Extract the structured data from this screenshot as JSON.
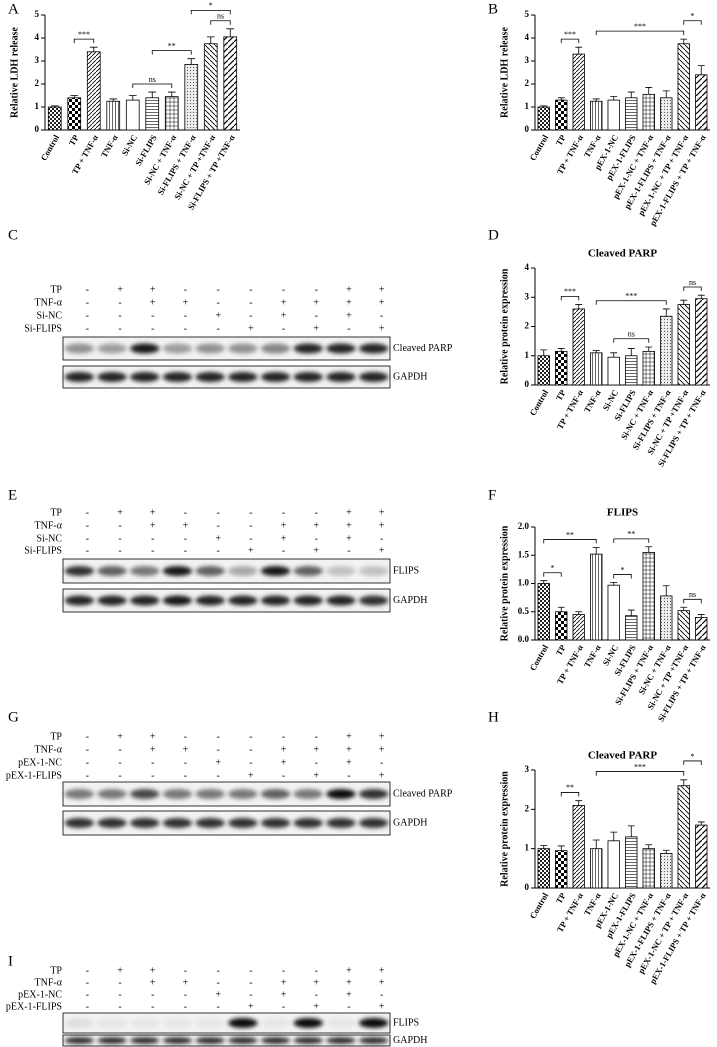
{
  "chart_data": [
    {
      "type": "bar",
      "label": "A",
      "ylabel": "Relative LDH release",
      "categories": [
        "Control",
        "TP",
        "TP + TNF-α",
        "TNF-α",
        "Si-NC",
        "Si-FLIPS",
        "Si-NC + TNF-α",
        "Si-FLIPS + TNF-α",
        "Si-NC + TP +TNF-α",
        "Si-FLIPS + TP +TNF-α"
      ],
      "values": [
        1.0,
        1.4,
        3.4,
        1.25,
        1.3,
        1.4,
        1.45,
        2.85,
        3.75,
        4.05
      ],
      "errors": [
        0.05,
        0.1,
        0.2,
        0.1,
        0.2,
        0.25,
        0.2,
        0.25,
        0.3,
        0.35
      ],
      "patterns": [
        "dense",
        "check",
        "diag",
        "vlines",
        "none",
        "hlines",
        "grid",
        "dots",
        "diag2",
        "diag3"
      ],
      "ylim": [
        0,
        5
      ],
      "yticks": [
        0,
        1,
        2,
        3,
        4,
        5
      ],
      "brackets": [
        {
          "from": 1,
          "to": 2,
          "label": "***"
        },
        {
          "from": 4,
          "to": 6,
          "label": "ns"
        },
        {
          "from": 5,
          "to": 7,
          "label": "**"
        },
        {
          "from": 8,
          "to": 9,
          "label": "ns"
        },
        {
          "from": 7,
          "to": 9,
          "label": "*"
        }
      ]
    },
    {
      "type": "bar",
      "label": "B",
      "ylabel": "Relative LDH release",
      "categories": [
        "Control",
        "TP",
        "TP + TNF-α",
        "TNF-α",
        "pEX-1-NC",
        "pEX-1-FLIPS",
        "pEX-1-NC + TNF-α",
        "pEX-1-FLIPS + TNF-α",
        "pEX-1-NC + TP + TNF-α",
        "pEX-1-FLIPS + TP + TNF-α"
      ],
      "values": [
        1.0,
        1.3,
        3.3,
        1.25,
        1.3,
        1.4,
        1.55,
        1.4,
        3.75,
        2.4
      ],
      "errors": [
        0.05,
        0.1,
        0.3,
        0.1,
        0.15,
        0.25,
        0.3,
        0.3,
        0.2,
        0.4
      ],
      "patterns": [
        "dense",
        "check",
        "diag",
        "vlines",
        "none",
        "hlines",
        "grid",
        "dots",
        "diag2",
        "diag3"
      ],
      "ylim": [
        0,
        5
      ],
      "yticks": [
        0,
        1,
        2,
        3,
        4,
        5
      ],
      "brackets": [
        {
          "from": 1,
          "to": 2,
          "label": "***"
        },
        {
          "from": 3,
          "to": 8,
          "label": "***"
        },
        {
          "from": 8,
          "to": 9,
          "label": "*"
        }
      ]
    },
    {
      "type": "bar",
      "label": "D",
      "title": "Cleaved PARP",
      "ylabel": "Relative protein expression",
      "categories": [
        "Control",
        "TP",
        "TP + TNF-α",
        "TNF-α",
        "Si-NC",
        "Si-FLIPS",
        "Si-NC + TNF-α",
        "Si-FLIPS + TNF-α",
        "Si-NC + TP +TNF-α",
        "Si-FLIPS + TP + TNF-α"
      ],
      "values": [
        1.0,
        1.15,
        2.6,
        1.1,
        0.95,
        1.0,
        1.15,
        2.35,
        2.75,
        2.95
      ],
      "errors": [
        0.2,
        0.1,
        0.15,
        0.08,
        0.15,
        0.25,
        0.15,
        0.25,
        0.15,
        0.12
      ],
      "patterns": [
        "dense",
        "check",
        "diag",
        "vlines",
        "none",
        "hlines",
        "grid",
        "dots",
        "diag2",
        "diag3"
      ],
      "ylim": [
        0,
        4
      ],
      "yticks": [
        0,
        1,
        2,
        3,
        4
      ],
      "brackets": [
        {
          "from": 1,
          "to": 2,
          "label": "***"
        },
        {
          "from": 4,
          "to": 6,
          "label": "ns"
        },
        {
          "from": 3,
          "to": 7,
          "label": "***"
        },
        {
          "from": 8,
          "to": 9,
          "label": "ns"
        }
      ]
    },
    {
      "type": "bar",
      "label": "F",
      "title": "FLIPS",
      "ylabel": "Relative protein expression",
      "categories": [
        "Control",
        "TP",
        "TP + TNF-α",
        "TNF-α",
        "Si-NC",
        "Si-FLIPS",
        "Si-FLIPS + TNF-α",
        "Si-NC + TNF-α",
        "Si-NC + TP +TNF-α",
        "Si-FLIPS + TP + TNF-α"
      ],
      "values": [
        1.0,
        0.5,
        0.45,
        1.52,
        0.97,
        0.43,
        1.55,
        0.78,
        0.52,
        0.4
      ],
      "errors": [
        0.05,
        0.08,
        0.05,
        0.12,
        0.05,
        0.1,
        0.1,
        0.18,
        0.06,
        0.05
      ],
      "patterns": [
        "dense",
        "check",
        "diag",
        "vlines",
        "none",
        "hlines",
        "grid",
        "dots",
        "diag2",
        "diag3"
      ],
      "ylim": [
        0,
        2
      ],
      "yticks": [
        {
          "value": 0,
          "label": "0.0"
        },
        {
          "value": 0.5,
          "label": "0.5"
        },
        {
          "value": 1,
          "label": "1.0"
        },
        {
          "value": 1.5,
          "label": "1.5"
        },
        {
          "value": 2,
          "label": "2.0"
        }
      ],
      "brackets": [
        {
          "from": 0,
          "to": 1,
          "label": "*"
        },
        {
          "from": 4,
          "to": 5,
          "label": "*"
        },
        {
          "from": 0,
          "to": 3,
          "label": "**"
        },
        {
          "from": 4,
          "to": 6,
          "label": "**"
        },
        {
          "from": 8,
          "to": 9,
          "label": "ns"
        }
      ]
    },
    {
      "type": "bar",
      "label": "H",
      "title": "Cleaved PARP",
      "ylabel": "Relative protein expression",
      "categories": [
        "Control",
        "TP",
        "TP + TNF-α",
        "TNF-α",
        "pEX-1-NC",
        "pEX-1-FLIPS",
        "pEX-1-NC + TNF-α",
        "pEX-1-FLIPS + TNF-α",
        "pEX-1-NC + TP + TNF-α",
        "pEX-1-FLIPS + TP + TNF-α"
      ],
      "values": [
        1.0,
        0.95,
        2.1,
        1.0,
        1.2,
        1.3,
        1.0,
        0.88,
        2.6,
        1.6
      ],
      "errors": [
        0.08,
        0.12,
        0.12,
        0.22,
        0.22,
        0.28,
        0.1,
        0.08,
        0.15,
        0.08
      ],
      "patterns": [
        "dense",
        "check",
        "diag",
        "vlines",
        "none",
        "hlines",
        "grid",
        "dots",
        "diag2",
        "diag3"
      ],
      "ylim": [
        0,
        3
      ],
      "yticks": [
        0,
        1,
        2,
        3
      ],
      "brackets": [
        {
          "from": 1,
          "to": 2,
          "label": "**"
        },
        {
          "from": 3,
          "to": 8,
          "label": "***"
        },
        {
          "from": 8,
          "to": 9,
          "label": "*"
        }
      ]
    }
  ],
  "blots": [
    {
      "label": "C",
      "rows": [
        {
          "label": "TP",
          "signs": [
            "-",
            "+",
            "+",
            "-",
            "-",
            "-",
            "-",
            "-",
            "+",
            "+"
          ]
        },
        {
          "label": "TNF-α",
          "signs": [
            "-",
            "-",
            "+",
            "+",
            "-",
            "-",
            "+",
            "+",
            "+",
            "+"
          ]
        },
        {
          "label": "Si-NC",
          "signs": [
            "-",
            "-",
            "-",
            "-",
            "+",
            "-",
            "+",
            "-",
            "+",
            "-"
          ]
        },
        {
          "label": "Si-FLIPS",
          "signs": [
            "-",
            "-",
            "-",
            "-",
            "-",
            "+",
            "-",
            "+",
            "-",
            "+"
          ]
        }
      ],
      "bands": [
        {
          "name": "Cleaved PARP",
          "intensity": [
            0.4,
            0.35,
            0.9,
            0.35,
            0.4,
            0.4,
            0.45,
            0.85,
            0.85,
            0.85
          ]
        },
        {
          "name": "GAPDH",
          "intensity": [
            0.85,
            0.85,
            0.85,
            0.85,
            0.85,
            0.85,
            0.85,
            0.85,
            0.85,
            0.85
          ]
        }
      ]
    },
    {
      "label": "E",
      "rows": [
        {
          "label": "TP",
          "signs": [
            "-",
            "+",
            "+",
            "-",
            "-",
            "-",
            "-",
            "-",
            "+",
            "+"
          ]
        },
        {
          "label": "TNF-α",
          "signs": [
            "-",
            "-",
            "+",
            "+",
            "-",
            "-",
            "+",
            "+",
            "+",
            "+"
          ]
        },
        {
          "label": "Si-NC",
          "signs": [
            "-",
            "-",
            "-",
            "-",
            "+",
            "-",
            "+",
            "-",
            "+",
            "-"
          ]
        },
        {
          "label": "Si-FLIPS",
          "signs": [
            "-",
            "-",
            "-",
            "-",
            "-",
            "+",
            "-",
            "+",
            "-",
            "+"
          ]
        }
      ],
      "bands": [
        {
          "name": "FLIPS",
          "intensity": [
            0.8,
            0.6,
            0.5,
            0.9,
            0.6,
            0.3,
            0.9,
            0.6,
            0.2,
            0.2
          ]
        },
        {
          "name": "GAPDH",
          "intensity": [
            0.85,
            0.85,
            0.85,
            0.9,
            0.85,
            0.85,
            0.85,
            0.85,
            0.85,
            0.8
          ]
        }
      ]
    },
    {
      "label": "G",
      "rows": [
        {
          "label": "TP",
          "signs": [
            "-",
            "+",
            "+",
            "-",
            "-",
            "-",
            "-",
            "-",
            "+",
            "+"
          ]
        },
        {
          "label": "TNF-α",
          "signs": [
            "-",
            "-",
            "+",
            "+",
            "-",
            "-",
            "+",
            "+",
            "+",
            "+"
          ]
        },
        {
          "label": "pEX-1-NC",
          "signs": [
            "-",
            "-",
            "-",
            "-",
            "+",
            "-",
            "+",
            "-",
            "+",
            "-"
          ]
        },
        {
          "label": "pEX-1-FLIPS",
          "signs": [
            "-",
            "-",
            "-",
            "-",
            "-",
            "+",
            "-",
            "+",
            "-",
            "+"
          ]
        }
      ],
      "bands": [
        {
          "name": "Cleaved PARP",
          "intensity": [
            0.5,
            0.5,
            0.7,
            0.5,
            0.5,
            0.5,
            0.6,
            0.5,
            0.95,
            0.8
          ]
        },
        {
          "name": "GAPDH",
          "intensity": [
            0.8,
            0.8,
            0.8,
            0.8,
            0.8,
            0.8,
            0.8,
            0.8,
            0.8,
            0.8
          ]
        }
      ]
    },
    {
      "label": "I",
      "rows": [
        {
          "label": "TP",
          "signs": [
            "-",
            "+",
            "+",
            "-",
            "-",
            "-",
            "-",
            "-",
            "+",
            "+"
          ]
        },
        {
          "label": "TNF-α",
          "signs": [
            "-",
            "-",
            "+",
            "+",
            "-",
            "-",
            "+",
            "+",
            "+",
            "+"
          ]
        },
        {
          "label": "pEX-1-NC",
          "signs": [
            "-",
            "-",
            "-",
            "-",
            "+",
            "-",
            "+",
            "-",
            "+",
            "-"
          ]
        },
        {
          "label": "pEX-1-FLIPS",
          "signs": [
            "-",
            "-",
            "-",
            "-",
            "-",
            "+",
            "-",
            "+",
            "-",
            "+"
          ]
        }
      ],
      "bands": [
        {
          "name": "FLIPS",
          "intensity": [
            0.08,
            0.05,
            0.05,
            0.05,
            0.05,
            0.95,
            0.05,
            0.95,
            0.05,
            0.95
          ]
        },
        {
          "name": "GAPDH",
          "intensity": [
            0.85,
            0.85,
            0.85,
            0.85,
            0.85,
            0.85,
            0.85,
            0.85,
            0.85,
            0.85
          ]
        }
      ]
    }
  ]
}
